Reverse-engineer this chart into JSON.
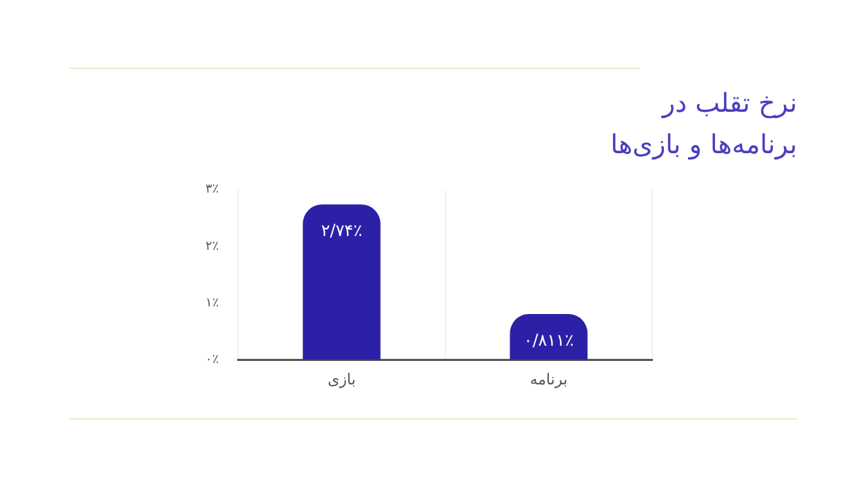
{
  "chart_data": {
    "type": "bar",
    "title": "نرخ تقلب در\nبرنامه‌ها و بازی‌ها",
    "categories": [
      "بازی",
      "برنامه"
    ],
    "values": [
      2.74,
      0.811
    ],
    "value_labels": [
      "۲/۷۴٪",
      "۰/۸۱۱٪"
    ],
    "color": "#2c21a6",
    "ylim": [
      0,
      3
    ],
    "yticks": [
      {
        "value": 0,
        "label": "۰٪"
      },
      {
        "value": 1,
        "label": "۱٪"
      },
      {
        "value": 2,
        "label": "۲٪"
      },
      {
        "value": 3,
        "label": "۳٪"
      }
    ],
    "grid": "x",
    "legend": false
  }
}
